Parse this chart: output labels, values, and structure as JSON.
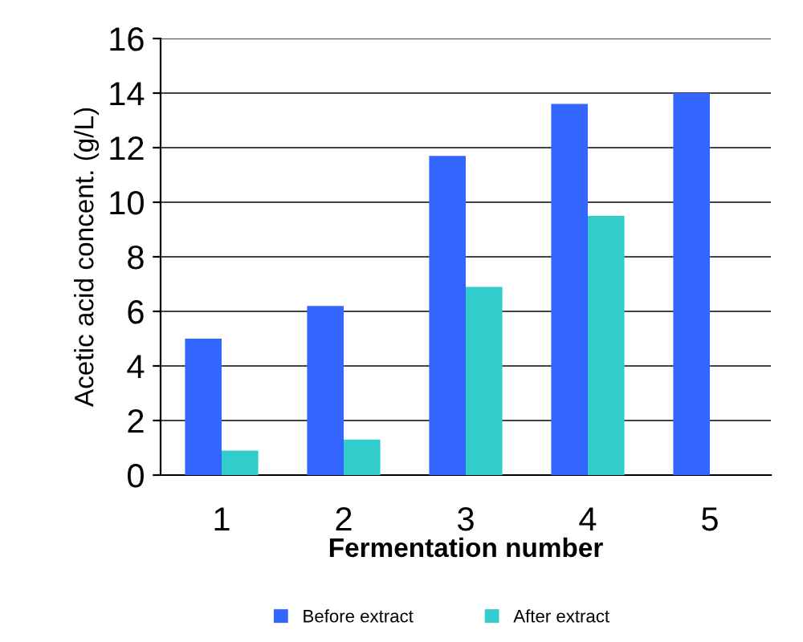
{
  "chart_data": {
    "type": "bar",
    "xlabel": "Fermentation number",
    "ylabel": "Acetic acid concent. (g/L)",
    "categories": [
      "1",
      "2",
      "3",
      "4",
      "5"
    ],
    "series": [
      {
        "name": "Before extract",
        "color": "#3366ff",
        "values": [
          5.0,
          6.2,
          11.7,
          13.6,
          14.0
        ]
      },
      {
        "name": "After extract",
        "color": "#33cccc",
        "values": [
          0.9,
          1.3,
          6.9,
          9.5,
          null
        ]
      }
    ],
    "ylim": [
      0,
      16
    ],
    "yticks": [
      0,
      2,
      4,
      6,
      8,
      10,
      12,
      14,
      16
    ],
    "grid": "y",
    "legend": "bottom"
  }
}
